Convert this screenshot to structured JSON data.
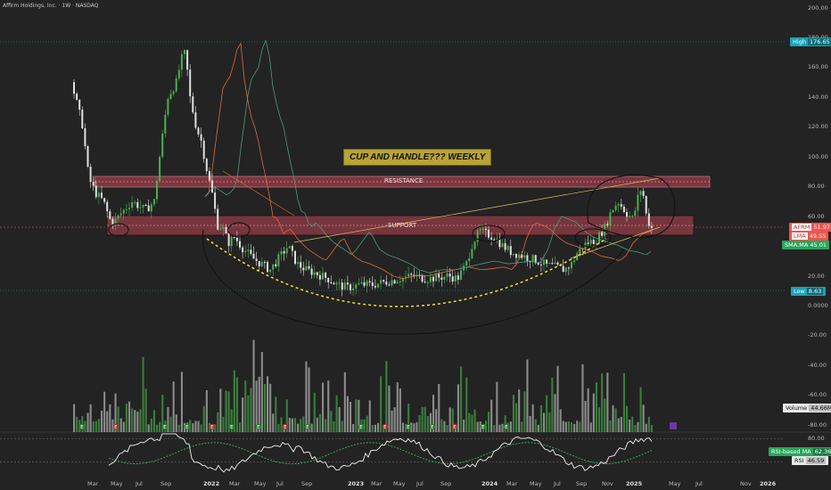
{
  "window": {
    "title": "Affirm Holdings, Inc. · 1W · NASDAQ"
  },
  "price_axis": {
    "ticks": [
      "200.00",
      "180.00",
      "160.00",
      "140.00",
      "120.00",
      "100.00",
      "80.00",
      "60.00",
      "40.00",
      "20.00",
      "0.0000",
      "-20.00",
      "-40.00",
      "-60.00",
      "-80.00"
    ],
    "high_label": "High",
    "high_value": "176.65",
    "low_label": "Low",
    "low_value": "8.63",
    "afrm_label": "AFRM",
    "afrm_value": "51.97",
    "lma_label": "LMA",
    "lma_value": "49.55",
    "sma_label": "SMA:MA",
    "sma_value": "45.01",
    "volume_label": "Volume",
    "volume_value": "44.66M"
  },
  "rsi_axis": {
    "ticks": [
      "80.00",
      "40.00"
    ],
    "ma_label": "RSI-based MA",
    "ma_value": "62.36",
    "rsi_label": "RSI",
    "rsi_value": "46.59"
  },
  "time_axis": [
    {
      "label": "Mar",
      "bold": false
    },
    {
      "label": "May",
      "bold": false
    },
    {
      "label": "Jul",
      "bold": false
    },
    {
      "label": "Sep",
      "bold": false
    },
    {
      "label": "2022",
      "bold": true
    },
    {
      "label": "Mar",
      "bold": false
    },
    {
      "label": "May",
      "bold": false
    },
    {
      "label": "Jul",
      "bold": false
    },
    {
      "label": "Sep",
      "bold": false
    },
    {
      "label": "2023",
      "bold": true
    },
    {
      "label": "Mar",
      "bold": false
    },
    {
      "label": "May",
      "bold": false
    },
    {
      "label": "Jul",
      "bold": false
    },
    {
      "label": "Sep",
      "bold": false
    },
    {
      "label": "2024",
      "bold": true
    },
    {
      "label": "Mar",
      "bold": false
    },
    {
      "label": "May",
      "bold": false
    },
    {
      "label": "Jul",
      "bold": false
    },
    {
      "label": "Sep",
      "bold": false
    },
    {
      "label": "Nov",
      "bold": false
    },
    {
      "label": "2025",
      "bold": true
    },
    {
      "label": "May",
      "bold": false
    },
    {
      "label": "Jul",
      "bold": false
    },
    {
      "label": "Nov",
      "bold": false
    },
    {
      "label": "2026",
      "bold": true
    }
  ],
  "annotations": {
    "note": "CUP AND HANDLE??? WEEKLY",
    "resistance": "RESISTANCE",
    "support": "SUPPORT"
  },
  "event_markers": [
    "E",
    "E",
    "E",
    "E",
    "E",
    "E",
    "E",
    "E",
    "E",
    "E",
    "E",
    "E",
    "E",
    "E",
    "E",
    "E"
  ],
  "colors": {
    "background": "#232323",
    "candle_up": "#4caf50",
    "candle_down": "#e0e0e0",
    "zone": "#8c3a44",
    "note_bg": "#b8a436",
    "high_tag": "#1aa3b8",
    "afrm_tag": "#ef5350",
    "sma_tag": "#26a65b"
  }
}
